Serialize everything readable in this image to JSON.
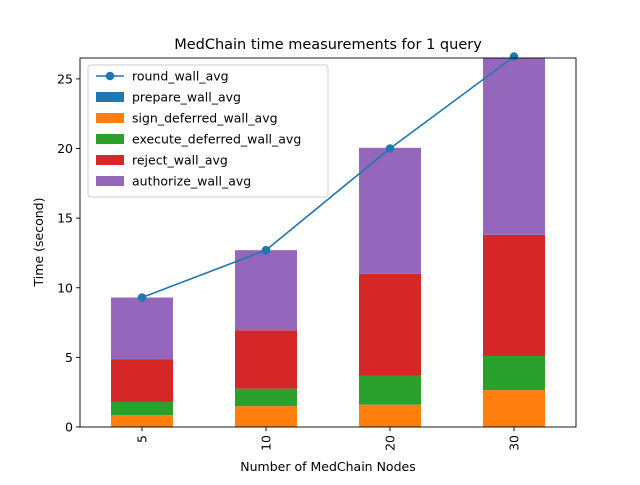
{
  "chart_data": {
    "type": "bar",
    "stacked": true,
    "title": "MedChain time measurements for 1 query",
    "xlabel": "Number of MedChain Nodes",
    "ylabel": "Time (second)",
    "categories": [
      "5",
      "10",
      "20",
      "30"
    ],
    "ylim": [
      0,
      26.5
    ],
    "yticks": [
      0,
      5,
      10,
      15,
      20,
      25
    ],
    "grid": false,
    "legend_position": "top-left",
    "line_series": {
      "name": "round_wall_avg",
      "color": "#1f77b4",
      "values": [
        9.3,
        12.7,
        20.0,
        26.6
      ]
    },
    "series": [
      {
        "name": "prepare_wall_avg",
        "color": "#1f77b4",
        "values": [
          0.0,
          0.0,
          0.0,
          0.0
        ]
      },
      {
        "name": "sign_deferred_wall_avg",
        "color": "#ff7f0e",
        "values": [
          0.85,
          1.5,
          1.6,
          2.65
        ]
      },
      {
        "name": "execute_deferred_wall_avg",
        "color": "#2ca02c",
        "values": [
          0.95,
          1.25,
          2.1,
          2.45
        ]
      },
      {
        "name": "reject_wall_avg",
        "color": "#d62728",
        "values": [
          3.05,
          4.2,
          7.3,
          8.7
        ]
      },
      {
        "name": "authorize_wall_avg",
        "color": "#9467bd",
        "values": [
          4.45,
          5.75,
          9.05,
          12.7
        ]
      }
    ]
  }
}
